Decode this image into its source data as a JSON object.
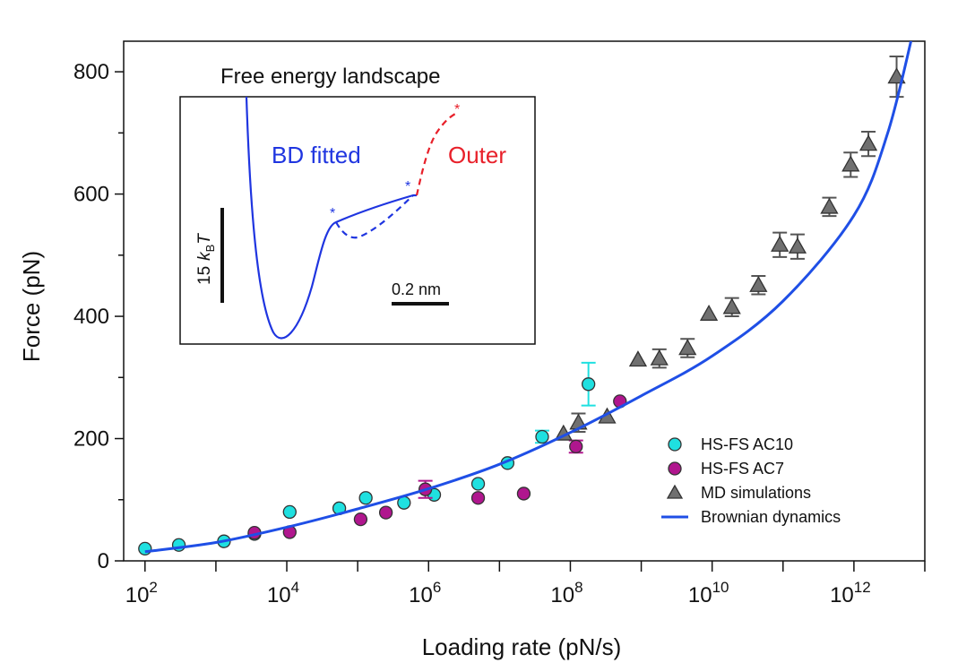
{
  "chart_data": {
    "type": "scatter",
    "xlabel": "Loading rate (pN/s)",
    "ylabel": "Force (pN)",
    "x_scale": "log",
    "xlim": [
      50,
      10000000000000.0
    ],
    "ylim": [
      0,
      850
    ],
    "x_ticks": [
      {
        "value": 100,
        "base": "10",
        "exp": "2"
      },
      {
        "value": 10000,
        "base": "10",
        "exp": "4"
      },
      {
        "value": 1000000,
        "base": "10",
        "exp": "6"
      },
      {
        "value": 100000000,
        "base": "10",
        "exp": "8"
      },
      {
        "value": 10000000000,
        "base": "10",
        "exp": "10"
      },
      {
        "value": 1000000000000,
        "base": "10",
        "exp": "12"
      }
    ],
    "y_ticks": [
      {
        "value": 0,
        "label": "0"
      },
      {
        "value": 200,
        "label": "200"
      },
      {
        "value": 400,
        "label": "400"
      },
      {
        "value": 600,
        "label": "600"
      },
      {
        "value": 800,
        "label": "800"
      }
    ],
    "legend_position": "bottom-right",
    "series": [
      {
        "name": "HS-FS AC10",
        "marker": "circle",
        "color": "#1fe0e0",
        "points": [
          {
            "x": 100,
            "y": 20
          },
          {
            "x": 300,
            "y": 26
          },
          {
            "x": 1300,
            "y": 32
          },
          {
            "x": 3500,
            "y": 44
          },
          {
            "x": 11000,
            "y": 80
          },
          {
            "x": 55000,
            "y": 86
          },
          {
            "x": 130000,
            "y": 103
          },
          {
            "x": 450000,
            "y": 95
          },
          {
            "x": 1200000,
            "y": 108
          },
          {
            "x": 5000000,
            "y": 126
          },
          {
            "x": 13000000,
            "y": 160
          },
          {
            "x": 40000000,
            "y": 203,
            "err": 10
          },
          {
            "x": 180000000,
            "y": 289,
            "err": 35
          }
        ]
      },
      {
        "name": "HS-FS AC7",
        "marker": "circle",
        "color": "#b0168e",
        "points": [
          {
            "x": 3500,
            "y": 46
          },
          {
            "x": 11000,
            "y": 47
          },
          {
            "x": 110000,
            "y": 68
          },
          {
            "x": 250000,
            "y": 79
          },
          {
            "x": 900000,
            "y": 117,
            "err": 14
          },
          {
            "x": 5000000,
            "y": 103
          },
          {
            "x": 22000000,
            "y": 110
          },
          {
            "x": 120000000,
            "y": 187,
            "err": 10
          },
          {
            "x": 500000000,
            "y": 261
          }
        ]
      },
      {
        "name": "MD simulations",
        "marker": "triangle",
        "color": "#707070",
        "points": [
          {
            "x": 80000000,
            "y": 208
          },
          {
            "x": 130000000,
            "y": 226,
            "err": 15
          },
          {
            "x": 330000000,
            "y": 236
          },
          {
            "x": 900000000,
            "y": 329
          },
          {
            "x": 1800000000,
            "y": 331,
            "err": 15
          },
          {
            "x": 4500000000,
            "y": 348,
            "err": 15
          },
          {
            "x": 9000000000,
            "y": 404
          },
          {
            "x": 19000000000,
            "y": 415,
            "err": 15
          },
          {
            "x": 45000000000,
            "y": 451,
            "err": 15
          },
          {
            "x": 90000000000,
            "y": 517,
            "err": 20
          },
          {
            "x": 160000000000,
            "y": 514,
            "err": 20
          },
          {
            "x": 450000000000,
            "y": 579,
            "err": 15
          },
          {
            "x": 900000000000,
            "y": 648,
            "err": 20
          },
          {
            "x": 1600000000000,
            "y": 682,
            "err": 20
          },
          {
            "x": 4000000000000,
            "y": 792,
            "err": 33
          }
        ]
      },
      {
        "name": "Brownian dynamics",
        "marker": "line",
        "color": "#1f4fe6",
        "points": [
          {
            "x": 100,
            "y": 15
          },
          {
            "x": 1000,
            "y": 30
          },
          {
            "x": 10000,
            "y": 55
          },
          {
            "x": 100000,
            "y": 85
          },
          {
            "x": 1000000,
            "y": 118
          },
          {
            "x": 10000000,
            "y": 158
          },
          {
            "x": 100000000,
            "y": 210
          },
          {
            "x": 1000000000,
            "y": 270
          },
          {
            "x": 10000000000,
            "y": 335
          },
          {
            "x": 100000000000,
            "y": 425
          },
          {
            "x": 1000000000000,
            "y": 565
          },
          {
            "x": 3000000000000,
            "y": 700
          },
          {
            "x": 7000000000000,
            "y": 870
          }
        ]
      }
    ],
    "inset": {
      "title": "Free energy landscape",
      "label_fitted": "BD fitted",
      "label_outer": "Outer",
      "energy_scale_value": "15",
      "energy_scale_k": "k",
      "energy_scale_sub": "B",
      "energy_scale_T": "T",
      "length_scale": "0.2 nm",
      "marker_symbol": "*",
      "fitted_color": "#1f35e0",
      "outer_color": "#e8202a"
    }
  }
}
